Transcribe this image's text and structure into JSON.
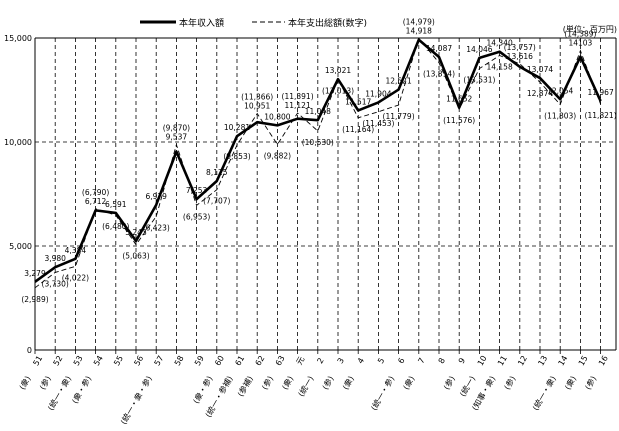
{
  "chart_data": {
    "type": "line",
    "legend": [
      {
        "name": "本年収入額",
        "style": "solid"
      },
      {
        "name": "本年支出総額(数字)",
        "style": "dashed"
      }
    ],
    "unit_label": "(単位：百万円)",
    "ylim": [
      0,
      15000
    ],
    "yticks": [
      "0",
      "5,000",
      "10,000",
      "15,000"
    ],
    "categories": [
      "51",
      "52",
      "53",
      "54",
      "55",
      "56",
      "57",
      "58",
      "59",
      "60",
      "61",
      "62",
      "63",
      "元",
      "2",
      "3",
      "4",
      "5",
      "6",
      "7",
      "8",
      "9",
      "10",
      "11",
      "12",
      "13",
      "14",
      "15",
      "16"
    ],
    "election_labels": [
      {
        "at": "51",
        "text": "(衆)"
      },
      {
        "at": "52",
        "text": "(参)"
      },
      {
        "at": "53",
        "text": "(統一・衆)"
      },
      {
        "at": "54",
        "text": "(衆・参)"
      },
      {
        "at": "57",
        "text": "(統一・衆・参)"
      },
      {
        "at": "60",
        "text": "(衆・参)"
      },
      {
        "at": "61",
        "text": "(統一・参補)"
      },
      {
        "at": "62",
        "text": "(参補)"
      },
      {
        "at": "63",
        "text": "(参)"
      },
      {
        "at": "元",
        "text": "(衆)"
      },
      {
        "at": "2",
        "text": "(統一)"
      },
      {
        "at": "3",
        "text": "(参)"
      },
      {
        "at": "4",
        "text": "(衆)"
      },
      {
        "at": "6",
        "text": "(統一・参)"
      },
      {
        "at": "7",
        "text": "(衆)"
      },
      {
        "at": "9",
        "text": "(参)"
      },
      {
        "at": "10",
        "text": "(統一)"
      },
      {
        "at": "11",
        "text": "(知事・衆)"
      },
      {
        "at": "12",
        "text": "(参)"
      },
      {
        "at": "14",
        "text": "(統一・衆)"
      },
      {
        "at": "15",
        "text": "(衆)"
      },
      {
        "at": "16",
        "text": "(参)"
      }
    ],
    "series": [
      {
        "name": "本年収入額",
        "values": [
          3279,
          3980,
          4384,
          6712,
          6591,
          5243,
          6979,
          9537,
          7253,
          8125,
          10281,
          10951,
          10800,
          11121,
          11048,
          13021,
          11517,
          11904,
          12521,
          14918,
          14087,
          11652,
          14046,
          14340,
          13616,
          13074,
          12054,
          14103,
          11967
        ],
        "labels": [
          "3,279",
          "3,980",
          "4,384",
          "6,712",
          "6,591",
          "5,243",
          "6,979",
          "9,537",
          "7,253",
          "8,125",
          "10,281",
          "10,951",
          "10,800",
          "11,121",
          "11,048",
          "13,021",
          "11,517",
          "11,904",
          "12,521",
          "14,918",
          "14,087",
          "11,652",
          "14,046",
          "14,340",
          "13,616",
          "13,074",
          "12,054",
          "14103",
          "11,967"
        ]
      },
      {
        "name": "本年支出総額(数字)",
        "values": [
          2989,
          3730,
          4022,
          6790,
          6480,
          5063,
          6423,
          9870,
          6953,
          7707,
          9853,
          11366,
          9882,
          11391,
          10530,
          13013,
          11164,
          11453,
          11779,
          14979,
          13814,
          11576,
          13531,
          14158,
          13757,
          12874,
          11803,
          14389,
          11821
        ],
        "labels": [
          "(2,989)",
          "(3,730)",
          "(4,022)",
          "(6,790)",
          "(6,480)",
          "(5,063)",
          "(6,423)",
          "(9,870)",
          "(6,953)",
          "(7,707)",
          "(9,853)",
          "(11,366)",
          "(9,882)",
          "(11,391)",
          "(10,530)",
          "(13,013)",
          "(11,164)",
          "(11,453)",
          "(11,779)",
          "(14,979)",
          "(13,814)",
          "(11,576)",
          "(13,531)",
          "14,158",
          "(13,757)",
          "12,874",
          "(11,803)",
          "(14,389)",
          "(11,821)"
        ]
      }
    ]
  }
}
